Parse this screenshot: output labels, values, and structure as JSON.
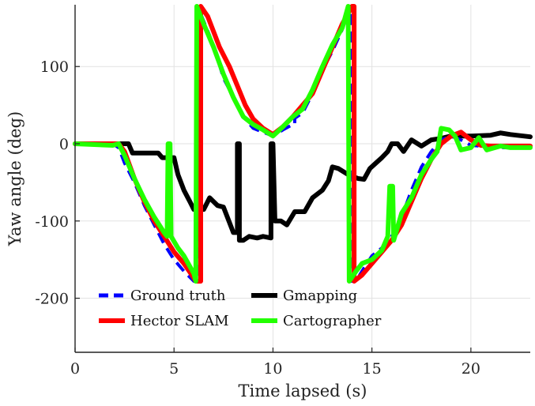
{
  "chart_data": {
    "type": "line",
    "xlabel": "Time lapsed (s)",
    "ylabel": "Yaw angle (deg)",
    "xlim": [
      0,
      23
    ],
    "ylim": [
      -270,
      180
    ],
    "xticks": [
      0,
      5,
      10,
      15,
      20
    ],
    "yticks": [
      100,
      0,
      -100,
      -200
    ],
    "grid": true,
    "legend_position": "bottom-left",
    "series": [
      {
        "name": "Ground truth",
        "color": "#0000ff",
        "style": "dashed",
        "points": [
          [
            0,
            0
          ],
          [
            1.9,
            0
          ],
          [
            2.2,
            -5
          ],
          [
            2.5,
            -25
          ],
          [
            3,
            -50
          ],
          [
            3.5,
            -80
          ],
          [
            4,
            -105
          ],
          [
            4.5,
            -130
          ],
          [
            5,
            -150
          ],
          [
            5.5,
            -165
          ],
          [
            6,
            -178
          ],
          [
            6.2,
            -178
          ],
          [
            6.2,
            178
          ],
          [
            6.4,
            165
          ],
          [
            6.8,
            140
          ],
          [
            7.2,
            110
          ],
          [
            7.5,
            85
          ],
          [
            8,
            60
          ],
          [
            8.5,
            35
          ],
          [
            9,
            20
          ],
          [
            9.5,
            15
          ],
          [
            10,
            10
          ],
          [
            10.5,
            18
          ],
          [
            11,
            25
          ],
          [
            11.1,
            25
          ],
          [
            11.1,
            33
          ],
          [
            11.5,
            40
          ],
          [
            12,
            65
          ],
          [
            12.5,
            95
          ],
          [
            13,
            120
          ],
          [
            13.5,
            148
          ],
          [
            13.9,
            178
          ],
          [
            13.9,
            -178
          ],
          [
            14.2,
            -178
          ],
          [
            14.5,
            -165
          ],
          [
            15,
            -145
          ],
          [
            15.5,
            -135
          ],
          [
            16,
            -120
          ],
          [
            16.5,
            -95
          ],
          [
            17,
            -60
          ],
          [
            17.5,
            -30
          ],
          [
            18,
            -10
          ],
          [
            18.5,
            5
          ],
          [
            19,
            10
          ],
          [
            19.5,
            5
          ],
          [
            20,
            -2
          ],
          [
            20.5,
            -3
          ],
          [
            21,
            -5
          ],
          [
            22,
            -5
          ],
          [
            23,
            -5
          ]
        ]
      },
      {
        "name": "Hector SLAM",
        "color": "#ff0000",
        "style": "solid",
        "points": [
          [
            0,
            0
          ],
          [
            2.2,
            0
          ],
          [
            2.5,
            -10
          ],
          [
            3,
            -45
          ],
          [
            3.5,
            -75
          ],
          [
            4,
            -100
          ],
          [
            4.5,
            -120
          ],
          [
            5,
            -140
          ],
          [
            5.5,
            -155
          ],
          [
            5.9,
            -170
          ],
          [
            6.1,
            -178
          ],
          [
            6.35,
            -178
          ],
          [
            6.35,
            178
          ],
          [
            6.7,
            165
          ],
          [
            7,
            145
          ],
          [
            7.3,
            125
          ],
          [
            7.8,
            100
          ],
          [
            8.2,
            75
          ],
          [
            8.6,
            50
          ],
          [
            9,
            32
          ],
          [
            9.5,
            20
          ],
          [
            10,
            12
          ],
          [
            10.5,
            22
          ],
          [
            11,
            35
          ],
          [
            11.5,
            50
          ],
          [
            12,
            65
          ],
          [
            12.5,
            95
          ],
          [
            13,
            125
          ],
          [
            13.5,
            155
          ],
          [
            14,
            178
          ],
          [
            14.1,
            178
          ],
          [
            14.1,
            -178
          ],
          [
            14.5,
            -170
          ],
          [
            15,
            -155
          ],
          [
            15.5,
            -140
          ],
          [
            16,
            -125
          ],
          [
            16.5,
            -105
          ],
          [
            17,
            -75
          ],
          [
            17.5,
            -45
          ],
          [
            18,
            -20
          ],
          [
            18.5,
            0
          ],
          [
            19,
            10
          ],
          [
            19.5,
            15
          ],
          [
            20,
            5
          ],
          [
            20.5,
            -2
          ],
          [
            21,
            -3
          ],
          [
            22,
            -3
          ],
          [
            23,
            -3
          ]
        ]
      },
      {
        "name": "Gmapping",
        "color": "#000000",
        "style": "solid",
        "points": [
          [
            0,
            0
          ],
          [
            2.7,
            0
          ],
          [
            2.9,
            -12
          ],
          [
            4.2,
            -12
          ],
          [
            4.4,
            -18
          ],
          [
            5,
            -18
          ],
          [
            5.2,
            -40
          ],
          [
            5.5,
            -60
          ],
          [
            5.8,
            -75
          ],
          [
            6,
            -85
          ],
          [
            6.5,
            -85
          ],
          [
            6.8,
            -70
          ],
          [
            7.2,
            -80
          ],
          [
            7.5,
            -82
          ],
          [
            8,
            -115
          ],
          [
            8.2,
            -115
          ],
          [
            8.2,
            0
          ],
          [
            8.3,
            0
          ],
          [
            8.3,
            -125
          ],
          [
            8.5,
            -125
          ],
          [
            8.8,
            -120
          ],
          [
            9.2,
            -122
          ],
          [
            9.5,
            -120
          ],
          [
            9.9,
            -122
          ],
          [
            9.9,
            0
          ],
          [
            10,
            0
          ],
          [
            10.1,
            -100
          ],
          [
            10.4,
            -100
          ],
          [
            10.7,
            -105
          ],
          [
            11.1,
            -88
          ],
          [
            11.6,
            -88
          ],
          [
            12,
            -70
          ],
          [
            12.5,
            -60
          ],
          [
            12.8,
            -48
          ],
          [
            13,
            -30
          ],
          [
            13.3,
            -32
          ],
          [
            13.8,
            -40
          ],
          [
            14.3,
            -45
          ],
          [
            14.6,
            -46
          ],
          [
            14.9,
            -32
          ],
          [
            15.2,
            -25
          ],
          [
            15.5,
            -18
          ],
          [
            15.8,
            -10
          ],
          [
            16,
            0
          ],
          [
            16.3,
            0
          ],
          [
            16.6,
            -10
          ],
          [
            17,
            5
          ],
          [
            17.5,
            -3
          ],
          [
            18,
            5
          ],
          [
            18.5,
            7
          ],
          [
            19,
            10
          ],
          [
            20,
            10
          ],
          [
            21,
            11
          ],
          [
            21.5,
            14
          ],
          [
            22,
            12
          ],
          [
            23,
            9
          ]
        ]
      },
      {
        "name": "Cartographer",
        "color": "#22ff00",
        "style": "solid",
        "points": [
          [
            0,
            0
          ],
          [
            1.9,
            -2
          ],
          [
            2.2,
            0
          ],
          [
            2.5,
            -15
          ],
          [
            3,
            -45
          ],
          [
            3.5,
            -72
          ],
          [
            4,
            -95
          ],
          [
            4.5,
            -115
          ],
          [
            4.65,
            -120
          ],
          [
            4.7,
            0
          ],
          [
            4.8,
            0
          ],
          [
            4.85,
            -120
          ],
          [
            5.2,
            -135
          ],
          [
            5.5,
            -145
          ],
          [
            6,
            -168
          ],
          [
            6.1,
            -178
          ],
          [
            6.15,
            178
          ],
          [
            6.5,
            155
          ],
          [
            7,
            125
          ],
          [
            7.5,
            90
          ],
          [
            8,
            60
          ],
          [
            8.5,
            35
          ],
          [
            9,
            25
          ],
          [
            9.5,
            18
          ],
          [
            10,
            10
          ],
          [
            10.5,
            22
          ],
          [
            11,
            35
          ],
          [
            11.5,
            45
          ],
          [
            12,
            70
          ],
          [
            12.5,
            100
          ],
          [
            13,
            128
          ],
          [
            13.5,
            150
          ],
          [
            13.8,
            178
          ],
          [
            13.85,
            -178
          ],
          [
            14.2,
            -165
          ],
          [
            14.5,
            -155
          ],
          [
            15,
            -150
          ],
          [
            15.5,
            -138
          ],
          [
            15.8,
            -120
          ],
          [
            15.9,
            -55
          ],
          [
            16.05,
            -55
          ],
          [
            16.1,
            -125
          ],
          [
            16.5,
            -90
          ],
          [
            17,
            -70
          ],
          [
            17.5,
            -40
          ],
          [
            18,
            -20
          ],
          [
            18.3,
            -10
          ],
          [
            18.5,
            20
          ],
          [
            18.9,
            18
          ],
          [
            19.2,
            10
          ],
          [
            19.5,
            -8
          ],
          [
            20,
            -5
          ],
          [
            20.4,
            8
          ],
          [
            20.8,
            -8
          ],
          [
            21.5,
            -3
          ],
          [
            22,
            -5
          ],
          [
            23,
            -5
          ]
        ]
      }
    ]
  }
}
